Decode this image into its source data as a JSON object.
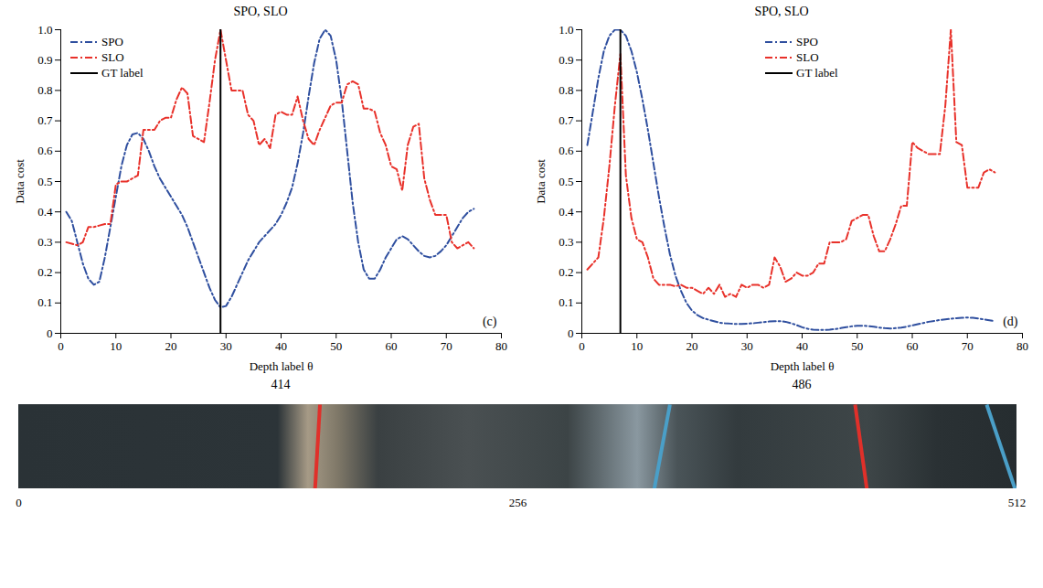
{
  "chart_data": [
    {
      "type": "line",
      "title": "SPO, SLO",
      "panel": "(c)",
      "caption": "414",
      "x_label": "Depth label θ",
      "y_label": "Data cost",
      "xlim": [
        0,
        80
      ],
      "xticks": [
        0,
        10,
        20,
        30,
        40,
        50,
        60,
        70,
        80
      ],
      "ylim": [
        0,
        1
      ],
      "yticks": [
        0,
        0.1,
        0.2,
        0.3,
        0.4,
        0.5,
        0.6,
        0.7,
        0.8,
        0.9,
        {
          "value": 1,
          "label": "1.0"
        }
      ],
      "grid": false,
      "legend": "upper left",
      "x": [
        1,
        2,
        3,
        4,
        5,
        6,
        7,
        8,
        9,
        10,
        11,
        12,
        13,
        14,
        15,
        16,
        17,
        18,
        19,
        20,
        21,
        22,
        23,
        24,
        25,
        26,
        27,
        28,
        29,
        30,
        31,
        32,
        33,
        34,
        35,
        36,
        37,
        38,
        39,
        40,
        41,
        42,
        43,
        44,
        45,
        46,
        47,
        48,
        49,
        50,
        51,
        52,
        53,
        54,
        55,
        56,
        57,
        58,
        59,
        60,
        61,
        62,
        63,
        64,
        65,
        66,
        67,
        68,
        69,
        70,
        71,
        72,
        73,
        74,
        75
      ],
      "series": [
        {
          "name": "SPO",
          "color": "#2f4f9f",
          "line_style": "dashdot",
          "values": [
            0.4,
            0.37,
            0.3,
            0.23,
            0.18,
            0.16,
            0.17,
            0.25,
            0.35,
            0.45,
            0.55,
            0.62,
            0.655,
            0.66,
            0.64,
            0.6,
            0.55,
            0.51,
            0.48,
            0.45,
            0.42,
            0.39,
            0.35,
            0.3,
            0.25,
            0.2,
            0.15,
            0.11,
            0.085,
            0.09,
            0.12,
            0.16,
            0.2,
            0.24,
            0.27,
            0.3,
            0.32,
            0.34,
            0.36,
            0.39,
            0.43,
            0.48,
            0.56,
            0.66,
            0.78,
            0.89,
            0.97,
            1.0,
            0.98,
            0.9,
            0.77,
            0.6,
            0.43,
            0.3,
            0.21,
            0.18,
            0.18,
            0.21,
            0.25,
            0.28,
            0.31,
            0.32,
            0.31,
            0.29,
            0.27,
            0.255,
            0.25,
            0.255,
            0.27,
            0.29,
            0.32,
            0.35,
            0.38,
            0.4,
            0.41
          ]
        },
        {
          "name": "SLO",
          "color": "#e8312a",
          "line_style": "dashdot",
          "values": [
            0.3,
            0.295,
            0.29,
            0.3,
            0.35,
            0.35,
            0.355,
            0.36,
            0.36,
            0.49,
            0.5,
            0.5,
            0.51,
            0.52,
            0.67,
            0.67,
            0.67,
            0.7,
            0.71,
            0.71,
            0.77,
            0.81,
            0.79,
            0.65,
            0.64,
            0.63,
            0.76,
            0.9,
            1.0,
            0.9,
            0.8,
            0.8,
            0.8,
            0.72,
            0.7,
            0.62,
            0.64,
            0.61,
            0.72,
            0.73,
            0.72,
            0.72,
            0.78,
            0.7,
            0.64,
            0.62,
            0.67,
            0.71,
            0.75,
            0.76,
            0.76,
            0.82,
            0.83,
            0.82,
            0.74,
            0.74,
            0.73,
            0.66,
            0.62,
            0.55,
            0.54,
            0.47,
            0.62,
            0.68,
            0.69,
            0.51,
            0.44,
            0.39,
            0.39,
            0.39,
            0.3,
            0.28,
            0.29,
            0.3,
            0.28
          ]
        },
        {
          "name": "GT label",
          "color": "#000000",
          "line_style": "solid",
          "x": [
            29,
            29
          ],
          "values": [
            0,
            1
          ]
        }
      ]
    },
    {
      "type": "line",
      "title": "SPO, SLO",
      "panel": "(d)",
      "caption": "486",
      "x_label": "Depth label θ",
      "y_label": "Data cost",
      "xlim": [
        0,
        80
      ],
      "xticks": [
        0,
        10,
        20,
        30,
        40,
        50,
        60,
        70,
        80
      ],
      "ylim": [
        0,
        1
      ],
      "yticks": [
        0,
        0.1,
        0.2,
        0.3,
        0.4,
        0.5,
        0.6,
        0.7,
        0.8,
        0.9,
        {
          "value": 1,
          "label": "1.0"
        }
      ],
      "grid": false,
      "legend": "upper center",
      "x": [
        1,
        2,
        3,
        4,
        5,
        6,
        7,
        8,
        9,
        10,
        11,
        12,
        13,
        14,
        15,
        16,
        17,
        18,
        19,
        20,
        21,
        22,
        23,
        24,
        25,
        26,
        27,
        28,
        29,
        30,
        31,
        32,
        33,
        34,
        35,
        36,
        37,
        38,
        39,
        40,
        41,
        42,
        43,
        44,
        45,
        46,
        47,
        48,
        49,
        50,
        51,
        52,
        53,
        54,
        55,
        56,
        57,
        58,
        59,
        60,
        61,
        62,
        63,
        64,
        65,
        66,
        67,
        68,
        69,
        70,
        71,
        72,
        73,
        74,
        75
      ],
      "series": [
        {
          "name": "SPO",
          "color": "#2f4f9f",
          "line_style": "dashdot",
          "values": [
            0.62,
            0.73,
            0.84,
            0.93,
            0.98,
            1.0,
            1.0,
            0.98,
            0.93,
            0.86,
            0.77,
            0.67,
            0.56,
            0.45,
            0.35,
            0.26,
            0.19,
            0.14,
            0.1,
            0.075,
            0.06,
            0.05,
            0.045,
            0.04,
            0.035,
            0.033,
            0.032,
            0.031,
            0.031,
            0.032,
            0.033,
            0.035,
            0.037,
            0.039,
            0.04,
            0.04,
            0.038,
            0.033,
            0.027,
            0.02,
            0.015,
            0.012,
            0.011,
            0.011,
            0.012,
            0.014,
            0.017,
            0.02,
            0.023,
            0.025,
            0.025,
            0.024,
            0.022,
            0.019,
            0.017,
            0.016,
            0.017,
            0.019,
            0.022,
            0.026,
            0.03,
            0.034,
            0.038,
            0.041,
            0.044,
            0.046,
            0.048,
            0.05,
            0.051,
            0.052,
            0.051,
            0.049,
            0.046,
            0.043,
            0.04
          ]
        },
        {
          "name": "SLO",
          "color": "#e8312a",
          "line_style": "dashdot",
          "values": [
            0.21,
            0.23,
            0.25,
            0.38,
            0.55,
            0.75,
            0.92,
            0.52,
            0.38,
            0.31,
            0.3,
            0.25,
            0.18,
            0.16,
            0.16,
            0.16,
            0.155,
            0.16,
            0.15,
            0.15,
            0.14,
            0.13,
            0.15,
            0.13,
            0.16,
            0.12,
            0.13,
            0.12,
            0.16,
            0.15,
            0.16,
            0.16,
            0.15,
            0.16,
            0.25,
            0.22,
            0.17,
            0.18,
            0.2,
            0.19,
            0.19,
            0.2,
            0.23,
            0.23,
            0.3,
            0.3,
            0.3,
            0.31,
            0.37,
            0.38,
            0.39,
            0.39,
            0.32,
            0.27,
            0.27,
            0.31,
            0.36,
            0.42,
            0.42,
            0.63,
            0.61,
            0.6,
            0.59,
            0.59,
            0.59,
            0.75,
            1.0,
            0.63,
            0.62,
            0.48,
            0.48,
            0.48,
            0.53,
            0.54,
            0.53
          ]
        },
        {
          "name": "GT label",
          "color": "#000000",
          "line_style": "solid",
          "x": [
            7,
            7
          ],
          "values": [
            0,
            1
          ]
        }
      ]
    },
    {
      "type": "image",
      "xlim": [
        0,
        512
      ],
      "xticks": [
        0,
        256,
        512
      ],
      "lines": [
        {
          "color": "#e0302a",
          "x_top": 154.5,
          "x_bottom": 152
        },
        {
          "color": "#4a9fc8",
          "x_top": 334,
          "x_bottom": 326
        },
        {
          "color": "#e0302a",
          "x_top": 429,
          "x_bottom": 435
        },
        {
          "color": "#4a9fc8",
          "x_top": 496.5,
          "x_bottom": 511
        }
      ]
    }
  ]
}
